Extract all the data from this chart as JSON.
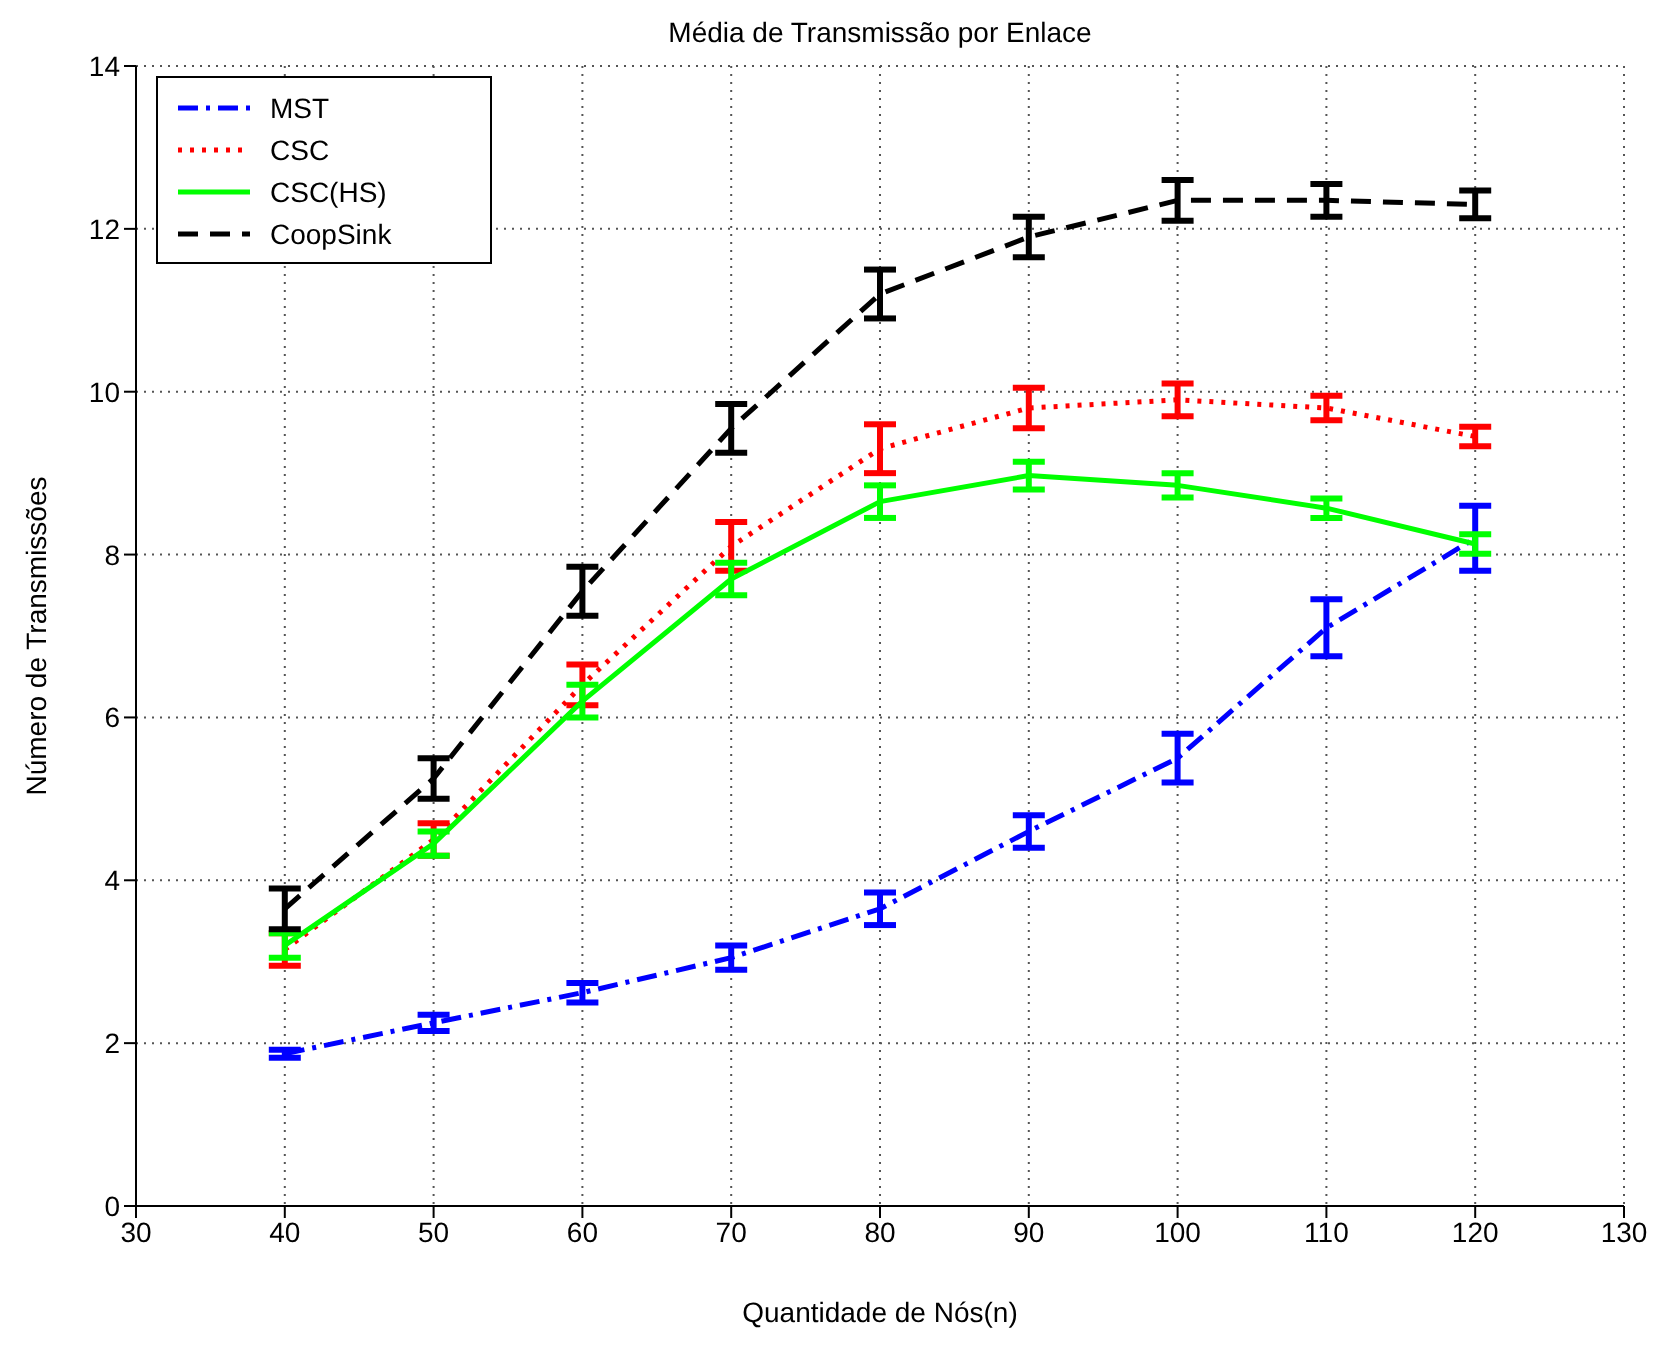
{
  "chart_data": {
    "type": "line",
    "title": "Média de Transmissão por Enlace",
    "xlabel": "Quantidade de Nós(n)",
    "ylabel": "Número de Transmissões",
    "x": [
      40,
      50,
      60,
      70,
      80,
      90,
      100,
      110,
      120
    ],
    "series": [
      {
        "name": "MST",
        "color": "#0000ff",
        "line_style": "dashdot",
        "values": [
          1.87,
          2.25,
          2.62,
          3.05,
          3.65,
          4.6,
          5.5,
          7.1,
          8.2
        ],
        "errors": [
          0.05,
          0.1,
          0.12,
          0.15,
          0.2,
          0.2,
          0.3,
          0.35,
          0.4
        ]
      },
      {
        "name": "CSC",
        "color": "#ff0000",
        "line_style": "dotted",
        "values": [
          3.15,
          4.5,
          6.4,
          8.1,
          9.3,
          9.8,
          9.9,
          9.8,
          9.45
        ],
        "errors": [
          0.2,
          0.2,
          0.25,
          0.3,
          0.3,
          0.25,
          0.2,
          0.15,
          0.12
        ]
      },
      {
        "name": "CSC(HS)",
        "color": "#00ff00",
        "line_style": "solid",
        "values": [
          3.2,
          4.45,
          6.2,
          7.7,
          8.65,
          8.97,
          8.85,
          8.57,
          8.13
        ],
        "errors": [
          0.15,
          0.15,
          0.2,
          0.2,
          0.2,
          0.17,
          0.15,
          0.12,
          0.12
        ]
      },
      {
        "name": "CoopSink",
        "color": "#000000",
        "line_style": "dashed",
        "values": [
          3.65,
          5.25,
          7.55,
          9.55,
          11.2,
          11.9,
          12.35,
          12.35,
          12.3
        ],
        "errors": [
          0.25,
          0.25,
          0.3,
          0.3,
          0.3,
          0.25,
          0.25,
          0.2,
          0.17
        ]
      }
    ],
    "xlim": [
      30,
      130
    ],
    "xticks": [
      30,
      40,
      50,
      60,
      70,
      80,
      90,
      100,
      110,
      120,
      130
    ],
    "ylim": [
      0,
      14
    ],
    "yticks": [
      0,
      2,
      4,
      6,
      8,
      10,
      12,
      14
    ],
    "grid": true,
    "legend": "top left",
    "marker": "none"
  }
}
